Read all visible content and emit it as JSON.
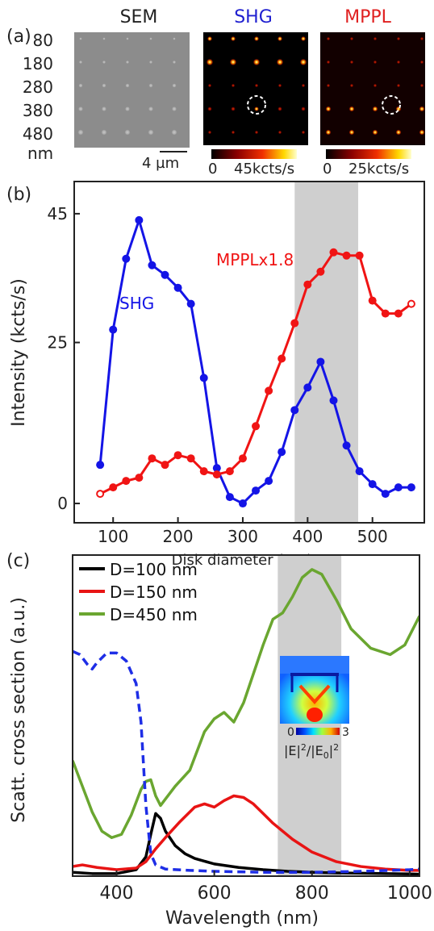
{
  "panel_a": {
    "label": "(a)",
    "titles": {
      "sem": "SEM",
      "shg": "SHG",
      "mppl": "MPPL"
    },
    "title_colors": {
      "sem": "#222222",
      "shg": "#2020d0",
      "mppl": "#e02020"
    },
    "row_labels": [
      "80",
      "180",
      "280",
      "380",
      "480"
    ],
    "unit_label": "nm",
    "scalebar_label": "4 µm",
    "colorbars": [
      {
        "min_label": "0",
        "max_label": "45kcts/s"
      },
      {
        "min_label": "0",
        "max_label": "25kcts/s"
      }
    ]
  },
  "chart_data": [
    {
      "panel_label": "(b)",
      "type": "line",
      "xlabel": "Disk diameter (nm)",
      "ylabel": "Intensity (kcts/s)",
      "xlim": [
        40,
        580
      ],
      "ylim": [
        -3,
        50
      ],
      "xticks": [
        "100",
        "200",
        "300",
        "400",
        "500"
      ],
      "yticks": [
        "0",
        "25",
        "45"
      ],
      "shaded_region": [
        380,
        478
      ],
      "series": [
        {
          "name": "SHG",
          "color": "#1414e6",
          "x": [
            80,
            100,
            120,
            140,
            160,
            180,
            200,
            220,
            240,
            260,
            280,
            300,
            320,
            340,
            360,
            380,
            400,
            420,
            440,
            460,
            480,
            500,
            520,
            540,
            560
          ],
          "y": [
            6,
            27,
            38,
            44,
            37,
            35.5,
            33.5,
            31,
            19.5,
            5.5,
            1,
            0,
            2,
            3.5,
            8,
            14.5,
            18,
            22,
            16,
            9,
            5,
            3,
            1.5,
            2.5,
            2.5
          ]
        },
        {
          "name": "MPPLx1.8",
          "color": "#f01414",
          "x": [
            80,
            100,
            120,
            140,
            160,
            180,
            200,
            220,
            240,
            260,
            280,
            300,
            320,
            340,
            360,
            380,
            400,
            420,
            440,
            460,
            480,
            500,
            520,
            540,
            560
          ],
          "y": [
            1.5,
            2.5,
            3.5,
            4,
            7,
            6,
            7.5,
            7,
            5,
            4.5,
            5,
            7,
            12,
            17.5,
            22.5,
            28,
            34,
            36,
            39,
            38.5,
            38.5,
            31.5,
            29.5,
            29.5,
            31
          ]
        }
      ]
    },
    {
      "panel_label": "(c)",
      "type": "line",
      "xlabel": "Wavelength (nm)",
      "ylabel": "Scatt. cross section (a.u.)",
      "xlim": [
        310,
        1020
      ],
      "ylim": [
        0,
        1
      ],
      "xticks": [
        "400",
        "600",
        "800",
        "1000"
      ],
      "shaded_region": [
        730,
        860
      ],
      "series": [
        {
          "name": "D=100 nm",
          "color": "#000000",
          "x": [
            310,
            350,
            400,
            440,
            460,
            470,
            480,
            490,
            500,
            520,
            540,
            560,
            600,
            650,
            700,
            750,
            800,
            850,
            900,
            950,
            1000,
            1020
          ],
          "y": [
            0.012,
            0.008,
            0.008,
            0.02,
            0.06,
            0.13,
            0.195,
            0.18,
            0.14,
            0.095,
            0.07,
            0.055,
            0.038,
            0.027,
            0.02,
            0.015,
            0.012,
            0.01,
            0.009,
            0.008,
            0.007,
            0.006
          ]
        },
        {
          "name": "D=150 nm",
          "color": "#e81414",
          "x": [
            310,
            330,
            360,
            400,
            440,
            460,
            480,
            500,
            530,
            560,
            580,
            600,
            620,
            640,
            660,
            680,
            700,
            720,
            760,
            800,
            850,
            900,
            950,
            1000,
            1020
          ],
          "y": [
            0.03,
            0.035,
            0.027,
            0.02,
            0.025,
            0.045,
            0.085,
            0.12,
            0.17,
            0.215,
            0.225,
            0.215,
            0.235,
            0.25,
            0.245,
            0.225,
            0.195,
            0.165,
            0.115,
            0.075,
            0.045,
            0.03,
            0.022,
            0.018,
            0.018
          ]
        },
        {
          "name": "D=450 nm",
          "color": "#6aa630",
          "x": [
            310,
            330,
            350,
            370,
            390,
            410,
            430,
            450,
            460,
            470,
            480,
            490,
            500,
            520,
            550,
            580,
            600,
            620,
            640,
            660,
            680,
            700,
            720,
            740,
            760,
            780,
            800,
            820,
            850,
            880,
            920,
            960,
            990,
            1010,
            1020
          ],
          "y": [
            0.36,
            0.28,
            0.2,
            0.14,
            0.12,
            0.13,
            0.19,
            0.27,
            0.295,
            0.3,
            0.25,
            0.22,
            0.24,
            0.28,
            0.33,
            0.45,
            0.49,
            0.51,
            0.48,
            0.54,
            0.63,
            0.72,
            0.8,
            0.82,
            0.87,
            0.93,
            0.955,
            0.94,
            0.86,
            0.77,
            0.71,
            0.69,
            0.72,
            0.78,
            0.81
          ]
        },
        {
          "color": "#1e2ee6",
          "dashed": true,
          "x": [
            310,
            325,
            340,
            350,
            360,
            380,
            400,
            420,
            440,
            450,
            460,
            470,
            480,
            500,
            550,
            600,
            700,
            800,
            900,
            1000,
            1020
          ],
          "y": [
            0.7,
            0.69,
            0.66,
            0.645,
            0.665,
            0.695,
            0.695,
            0.67,
            0.6,
            0.48,
            0.22,
            0.07,
            0.035,
            0.022,
            0.018,
            0.015,
            0.012,
            0.012,
            0.015,
            0.02,
            0.022
          ]
        }
      ],
      "inset": {
        "colorbar_min": "0",
        "colorbar_max": "3"
      }
    }
  ]
}
